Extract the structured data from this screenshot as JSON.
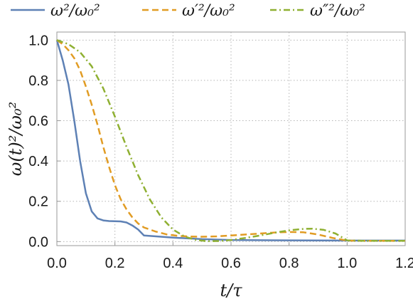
{
  "chart_data": {
    "type": "line",
    "title": "",
    "xlabel": "t/τ",
    "ylabel": "ω(t)²/ω₀²",
    "xlim": [
      0,
      1.2
    ],
    "ylim": [
      -0.02,
      1.04
    ],
    "x_ticks": [
      "0.0",
      "0.2",
      "0.4",
      "0.6",
      "0.8",
      "1.0",
      "1.2"
    ],
    "y_ticks": [
      "0.0",
      "0.2",
      "0.4",
      "0.6",
      "0.8",
      "1.0"
    ],
    "grid": true,
    "legend_position": "top",
    "series": [
      {
        "name": "ω²/ω₀²",
        "color": "#5e81b5",
        "dash": "solid",
        "x": [
          0.0,
          0.02,
          0.04,
          0.06,
          0.08,
          0.1,
          0.12,
          0.14,
          0.16,
          0.18,
          0.2,
          0.22,
          0.24,
          0.26,
          0.28,
          0.3,
          0.4,
          0.5,
          0.6,
          0.8,
          1.0,
          1.2
        ],
        "y": [
          1.0,
          0.9,
          0.78,
          0.6,
          0.4,
          0.24,
          0.15,
          0.115,
          0.105,
          0.102,
          0.101,
          0.1,
          0.095,
          0.08,
          0.06,
          0.03,
          0.02,
          0.012,
          0.008,
          0.006,
          0.005,
          0.005
        ]
      },
      {
        "name": "ω′²/ω₀²",
        "color": "#e19c24",
        "dash": "dashed",
        "x": [
          0.0,
          0.02,
          0.04,
          0.06,
          0.08,
          0.1,
          0.12,
          0.14,
          0.16,
          0.18,
          0.2,
          0.22,
          0.24,
          0.26,
          0.28,
          0.3,
          0.34,
          0.38,
          0.42,
          0.46,
          0.5,
          0.55,
          0.6,
          0.65,
          0.7,
          0.75,
          0.8,
          0.85,
          0.9,
          0.95,
          1.0,
          1.05,
          1.1,
          1.2
        ],
        "y": [
          1.0,
          0.98,
          0.95,
          0.91,
          0.85,
          0.77,
          0.68,
          0.58,
          0.47,
          0.37,
          0.28,
          0.21,
          0.16,
          0.12,
          0.09,
          0.07,
          0.05,
          0.035,
          0.028,
          0.025,
          0.024,
          0.026,
          0.03,
          0.035,
          0.04,
          0.045,
          0.048,
          0.046,
          0.035,
          0.018,
          0.005,
          0.004,
          0.004,
          0.004
        ]
      },
      {
        "name": "ω″²/ω₀²",
        "color": "#8fb032",
        "dash": "dashdot",
        "x": [
          0.0,
          0.04,
          0.08,
          0.12,
          0.16,
          0.2,
          0.24,
          0.28,
          0.32,
          0.36,
          0.4,
          0.44,
          0.48,
          0.52,
          0.56,
          0.6,
          0.65,
          0.7,
          0.75,
          0.8,
          0.85,
          0.88,
          0.92,
          0.96,
          1.0,
          1.05,
          1.1,
          1.2
        ],
        "y": [
          1.0,
          0.98,
          0.94,
          0.87,
          0.76,
          0.62,
          0.47,
          0.33,
          0.21,
          0.12,
          0.06,
          0.025,
          0.008,
          0.002,
          0.003,
          0.008,
          0.018,
          0.03,
          0.044,
          0.056,
          0.063,
          0.064,
          0.058,
          0.04,
          0.006,
          0.004,
          0.004,
          0.004
        ]
      }
    ]
  }
}
